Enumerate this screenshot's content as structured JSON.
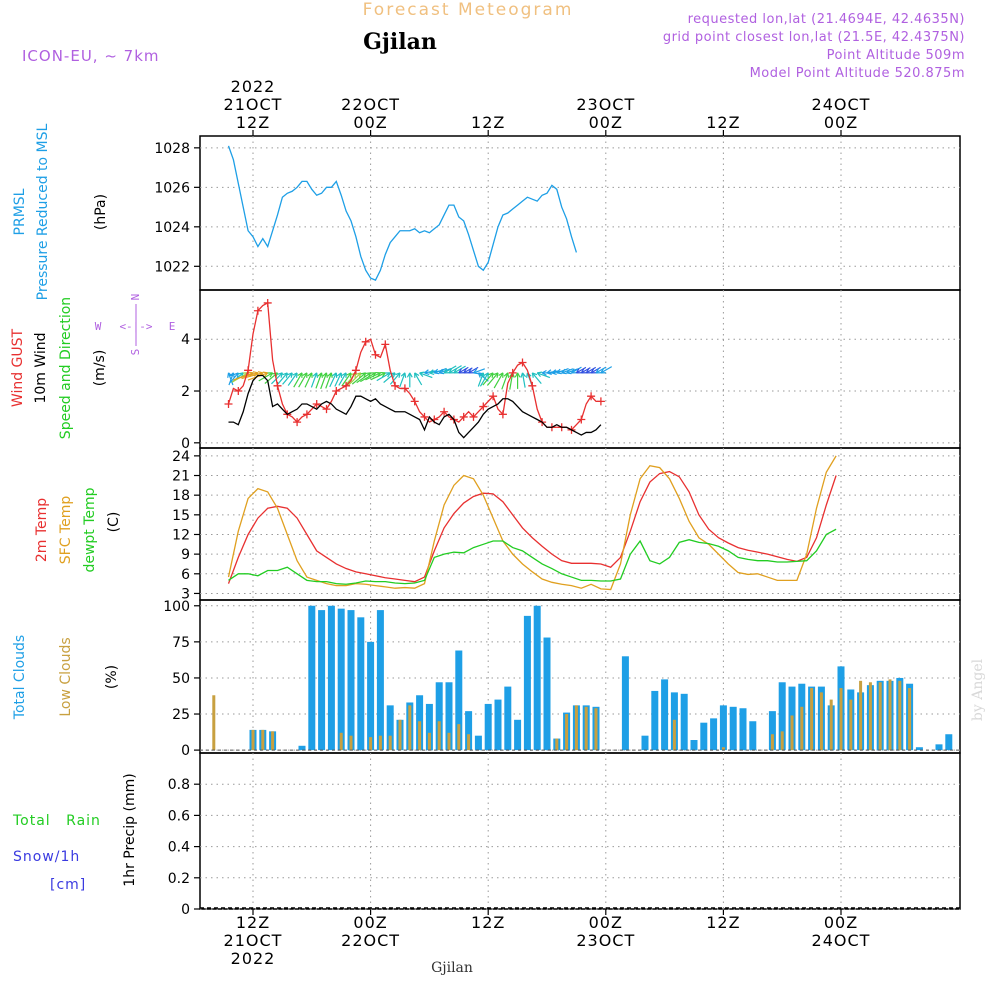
{
  "header": {
    "title": "Forecast Meteogram",
    "location": "Gjilan",
    "model": "ICON-EU, ~ 7km",
    "requested": "requested lon,lat (21.4694E, 42.4635N)",
    "grid_point": "grid point closest lon,lat (21.5E, 42.4375N)",
    "point_altitude": "Point Altitude 509m",
    "model_altitude": "Model Point Altitude 520.875m",
    "footer_location": "Gjilan",
    "credit": "by Angel"
  },
  "colors": {
    "pressure": "#1e9fe6",
    "gust": "#e83030",
    "wind": "#000000",
    "temp2m": "#e83030",
    "sfc": "#e0a020",
    "dewpt": "#22cc22",
    "total_clouds": "#1e9fe6",
    "low_clouds": "#c8a040",
    "rain": "#22cc22",
    "snow": "#3a3ae0",
    "header_violet": "#b060e0",
    "title_orange": "#f0c080",
    "grid": "#999999"
  },
  "time_axis": {
    "top": [
      {
        "t": 0,
        "lines": [
          "2022",
          "21OCT",
          "12Z"
        ]
      },
      {
        "t": 12,
        "lines": [
          "22OCT",
          "00Z"
        ]
      },
      {
        "t": 24,
        "lines": [
          "12Z"
        ]
      },
      {
        "t": 36,
        "lines": [
          "23OCT",
          "00Z"
        ]
      },
      {
        "t": 48,
        "lines": [
          "12Z"
        ]
      },
      {
        "t": 60,
        "lines": [
          "24OCT",
          "00Z"
        ]
      }
    ],
    "bottom": [
      {
        "t": 0,
        "lines": [
          "12Z",
          "21OCT",
          "2022"
        ]
      },
      {
        "t": 12,
        "lines": [
          "00Z",
          "22OCT"
        ]
      },
      {
        "t": 24,
        "lines": [
          "12Z"
        ]
      },
      {
        "t": 36,
        "lines": [
          "00Z",
          "23OCT"
        ]
      },
      {
        "t": 48,
        "lines": [
          "12Z"
        ]
      },
      {
        "t": 60,
        "lines": [
          "00Z",
          "24OCT"
        ]
      }
    ]
  },
  "chart_data": [
    {
      "type": "line",
      "panel": "pressure",
      "ylabel_lines": [
        "PRMSL",
        "Pressure Reduced to MSL"
      ],
      "unit": "(hPa)",
      "yticks": [
        1022,
        1024,
        1026,
        1028
      ],
      "ylim": [
        1020.8,
        1028.6
      ],
      "x_start": -2.5,
      "x_step": 0.5,
      "series": [
        {
          "name": "PRMSL",
          "color": "#1e9fe6",
          "values": [
            1028.1,
            1027.4,
            1026.2,
            1025.0,
            1023.8,
            1023.5,
            1023.0,
            1023.4,
            1023.0,
            1023.8,
            1024.6,
            1025.5,
            1025.7,
            1025.8,
            1026.0,
            1026.3,
            1026.3,
            1025.9,
            1025.6,
            1025.7,
            1026.0,
            1026.0,
            1026.3,
            1025.6,
            1024.8,
            1024.3,
            1023.5,
            1022.5,
            1021.8,
            1021.4,
            1021.3,
            1021.8,
            1022.6,
            1023.2,
            1023.5,
            1023.8,
            1023.8,
            1023.8,
            1023.9,
            1023.7,
            1023.8,
            1023.7,
            1023.9,
            1024.1,
            1024.6,
            1025.1,
            1025.1,
            1024.5,
            1024.3,
            1023.6,
            1022.8,
            1022.0,
            1021.8,
            1022.2,
            1023.1,
            1024.0,
            1024.6,
            1024.7,
            1024.9,
            1025.1,
            1025.3,
            1025.5,
            1025.4,
            1025.3,
            1025.6,
            1025.7,
            1026.1,
            1025.9,
            1025.0,
            1024.4,
            1023.5,
            1022.7
          ]
        }
      ]
    },
    {
      "type": "line",
      "panel": "wind",
      "ylabel_lines": [
        "Wind GUST",
        "10m Wind",
        "Speed and Direction"
      ],
      "unit": "(m/s)",
      "compass": {
        "n": "N",
        "w": "W",
        "e": "E",
        "s": "S",
        "arrow": "<-|->"
      },
      "yticks": [
        0,
        2,
        4
      ],
      "ylim": [
        -0.2,
        5.9
      ],
      "x_start": -2.5,
      "x_step": 0.5,
      "series": [
        {
          "name": "Wind GUST",
          "color": "#e83030",
          "values": [
            1.5,
            2.1,
            2.0,
            2.2,
            2.8,
            4.2,
            5.1,
            5.3,
            5.4,
            3.2,
            2.2,
            1.5,
            1.1,
            1.0,
            0.8,
            1.0,
            1.1,
            1.3,
            1.5,
            1.4,
            1.3,
            1.6,
            2.0,
            2.1,
            2.2,
            2.4,
            2.8,
            3.5,
            3.9,
            4.0,
            3.4,
            3.3,
            3.8,
            2.8,
            2.2,
            2.1,
            2.1,
            1.9,
            1.6,
            1.2,
            1.0,
            0.8,
            0.9,
            1.0,
            1.2,
            1.0,
            0.9,
            0.8,
            1.0,
            1.2,
            1.0,
            1.2,
            1.4,
            1.6,
            1.8,
            1.3,
            1.1,
            2.3,
            2.7,
            3.0,
            3.1,
            2.8,
            2.2,
            1.3,
            0.8,
            0.6,
            0.6,
            0.6,
            0.6,
            0.6,
            0.5,
            0.7,
            0.9,
            1.5,
            1.8,
            1.6,
            1.6
          ]
        },
        {
          "name": "10m Wind",
          "color": "#000000",
          "values": [
            0.8,
            0.8,
            0.7,
            1.2,
            1.9,
            2.4,
            2.6,
            2.6,
            2.4,
            1.4,
            1.5,
            1.3,
            1.1,
            1.2,
            1.3,
            1.5,
            1.5,
            1.4,
            1.3,
            1.5,
            1.6,
            1.5,
            1.3,
            1.2,
            1.1,
            1.4,
            1.8,
            1.8,
            1.7,
            1.6,
            1.7,
            1.5,
            1.4,
            1.3,
            1.2,
            1.2,
            1.2,
            1.1,
            1.0,
            0.9,
            0.5,
            1.0,
            0.8,
            0.7,
            1.0,
            1.1,
            0.9,
            0.4,
            0.2,
            0.4,
            0.6,
            0.8,
            1.1,
            1.3,
            1.4,
            1.5,
            1.7,
            1.7,
            1.6,
            1.4,
            1.2,
            1.1,
            1.0,
            0.9,
            0.8,
            0.6,
            0.6,
            0.7,
            0.6,
            0.6,
            0.5,
            0.4,
            0.3,
            0.4,
            0.4,
            0.5,
            0.7
          ]
        }
      ],
      "wind_dir": [
        160,
        200,
        220,
        230,
        240,
        250,
        255,
        255,
        250,
        240,
        230,
        225,
        220,
        220,
        215,
        210,
        210,
        205,
        200,
        200,
        200,
        200,
        205,
        205,
        210,
        215,
        220,
        225,
        230,
        235,
        240,
        245,
        245,
        240,
        230,
        220,
        200,
        180,
        150,
        110,
        80,
        80,
        70,
        70,
        60,
        60,
        60,
        60,
        60,
        60,
        70,
        130,
        200,
        210,
        220,
        220,
        210,
        200,
        190,
        180,
        170,
        160,
        140,
        110,
        90,
        80,
        80,
        70,
        70,
        70,
        60,
        60,
        60,
        60,
        60,
        60,
        60
      ]
    },
    {
      "type": "line",
      "panel": "temperature",
      "ylabel_lines": [
        "2m Temp",
        "SFC Temp",
        "dewpt Temp"
      ],
      "unit": "(C)",
      "yticks": [
        3,
        6,
        9,
        12,
        15,
        18,
        21,
        24
      ],
      "ylim": [
        2.0,
        25.2
      ],
      "x_start": -2.5,
      "x_step": 1,
      "series": [
        {
          "name": "2m Temp",
          "color": "#e83030",
          "values": [
            4.5,
            8.5,
            12.0,
            14.5,
            16.0,
            16.3,
            16.0,
            14.5,
            12.0,
            9.5,
            8.5,
            7.5,
            6.8,
            6.3,
            6.0,
            5.7,
            5.4,
            5.2,
            5.0,
            4.8,
            5.5,
            9.5,
            13.0,
            15.2,
            16.8,
            17.8,
            18.3,
            18.2,
            17.0,
            15.0,
            13.0,
            11.5,
            10.2,
            9.0,
            8.0,
            7.6,
            7.6,
            7.6,
            7.5,
            7.0,
            8.5,
            12.5,
            17.0,
            20.0,
            21.3,
            21.6,
            20.8,
            18.5,
            15.0,
            12.8,
            11.5,
            10.7,
            10.0,
            9.6,
            9.3,
            9.0,
            8.6,
            8.2,
            7.9,
            8.5,
            11.5,
            16.5,
            21.0
          ]
        },
        {
          "name": "SFC Temp",
          "color": "#e0a020",
          "values": [
            5.5,
            12.5,
            17.5,
            19.0,
            18.5,
            16.0,
            12.0,
            8.0,
            5.5,
            5.0,
            4.5,
            4.2,
            4.2,
            4.5,
            4.4,
            4.2,
            4.0,
            3.8,
            3.9,
            3.8,
            4.5,
            11.0,
            16.5,
            19.5,
            21.0,
            20.5,
            18.0,
            14.5,
            11.0,
            9.0,
            7.5,
            6.3,
            5.2,
            4.7,
            4.4,
            4.2,
            3.8,
            4.4,
            3.7,
            3.6,
            7.5,
            15.0,
            20.5,
            22.5,
            22.2,
            20.5,
            17.5,
            14.0,
            11.5,
            10.5,
            9.0,
            7.5,
            6.2,
            5.9,
            6.0,
            5.5,
            5.0,
            5.0,
            5.0,
            9.0,
            16.0,
            21.5,
            24.0
          ]
        },
        {
          "name": "dewpt Temp",
          "color": "#22cc22",
          "values": [
            5.0,
            6.0,
            6.0,
            5.7,
            6.5,
            6.5,
            7.0,
            6.0,
            5.0,
            4.8,
            4.8,
            4.5,
            4.4,
            4.6,
            4.9,
            4.8,
            4.8,
            4.6,
            4.5,
            4.6,
            5.0,
            8.5,
            9.0,
            9.3,
            9.2,
            10.0,
            10.5,
            11.0,
            11.0,
            10.0,
            9.5,
            8.5,
            7.5,
            6.8,
            6.0,
            5.5,
            5.0,
            5.0,
            4.9,
            4.9,
            5.2,
            9.0,
            11.0,
            8.0,
            7.5,
            8.5,
            10.8,
            11.2,
            10.8,
            10.6,
            10.2,
            9.5,
            8.5,
            8.2,
            8.0,
            8.0,
            7.8,
            7.8,
            7.9,
            8.0,
            9.5,
            12.0,
            12.8
          ]
        }
      ]
    },
    {
      "type": "bar",
      "panel": "clouds",
      "ylabel_lines": [
        "Total Clouds",
        "Low Clouds"
      ],
      "unit": "(%)",
      "yticks": [
        0,
        25,
        50,
        75,
        100
      ],
      "ylim": [
        -2,
        104
      ],
      "x_start": -4,
      "x_step": 1,
      "series": [
        {
          "name": "Total Clouds",
          "color": "#1e9fe6",
          "values": [
            0,
            0,
            0,
            0,
            14,
            14,
            13,
            0,
            0,
            3,
            100,
            97,
            100,
            98,
            97,
            92,
            75,
            97,
            31,
            21,
            33,
            38,
            32,
            47,
            47,
            69,
            27,
            10,
            32,
            35,
            44,
            21,
            93,
            100,
            78,
            8,
            26,
            31,
            31,
            30,
            0,
            0,
            65,
            0,
            10,
            41,
            49,
            40,
            39,
            7,
            19,
            22,
            31,
            30,
            29,
            20,
            0,
            27,
            47,
            44,
            46,
            44,
            44,
            31,
            58,
            42,
            40,
            45,
            48,
            48,
            50,
            46,
            2,
            0,
            4,
            11
          ]
        },
        {
          "name": "Low Clouds",
          "color": "#c8a040",
          "values": [
            38,
            0,
            0,
            0,
            14,
            14,
            13,
            0,
            0,
            0,
            0,
            0,
            0,
            12,
            10,
            0,
            9,
            10,
            10,
            21,
            31,
            20,
            12,
            20,
            12,
            18,
            11,
            0,
            0,
            0,
            0,
            0,
            0,
            0,
            0,
            8,
            25,
            31,
            30,
            29,
            0,
            0,
            0,
            0,
            0,
            0,
            0,
            21,
            0,
            0,
            0,
            0,
            2,
            0,
            0,
            0,
            0,
            11,
            13,
            24,
            30,
            43,
            40,
            35,
            43,
            35,
            48,
            47,
            47,
            49,
            48,
            43,
            0,
            0,
            0,
            0
          ]
        }
      ]
    },
    {
      "type": "bar",
      "panel": "precipitation",
      "ylabel_lines": [
        "1hr Precip (mm)"
      ],
      "legend_lines": [
        "Total Rain",
        "Snow/1h",
        "[cm]"
      ],
      "yticks": [
        0,
        0.2,
        0.4,
        0.6,
        0.8
      ],
      "ylim": [
        0,
        1.0
      ],
      "series": [
        {
          "name": "Total Rain",
          "color": "#22cc22",
          "values": []
        },
        {
          "name": "Snow/1h",
          "color": "#3a3ae0",
          "values": []
        }
      ]
    }
  ]
}
